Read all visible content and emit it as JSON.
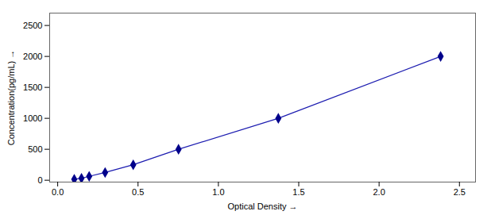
{
  "chart_data": {
    "type": "line",
    "xlabel": "Optical Density",
    "ylabel": "Concentration(pg/mL)",
    "x": [
      0.103,
      0.148,
      0.196,
      0.295,
      0.47,
      0.752,
      1.373,
      2.383
    ],
    "series": [
      {
        "type": "line",
        "color": "#1C1CB0",
        "line_style": "solid",
        "values": [
          15.6,
          31.25,
          62.5,
          125,
          250,
          500,
          1000,
          2000
        ]
      },
      {
        "type": "scatter",
        "color": "#00008B",
        "marker": "diamond",
        "values": [
          15.6,
          31.25,
          62.5,
          125,
          250,
          500,
          1000,
          2000
        ]
      }
    ],
    "xlim": [
      -0.05,
      2.6
    ],
    "ylim": [
      -30,
      2700
    ],
    "xticks": [
      {
        "value": 0,
        "label": "0.0"
      },
      {
        "value": 0.5,
        "label": "0.5"
      },
      {
        "value": 1,
        "label": "1.0"
      },
      {
        "value": 1.5,
        "label": "1.5"
      },
      {
        "value": 2,
        "label": "2.0"
      },
      {
        "value": 2.5,
        "label": "2.5"
      }
    ],
    "yticks": [
      0,
      500,
      1000,
      1500,
      2000,
      2500
    ],
    "grid": false
  }
}
